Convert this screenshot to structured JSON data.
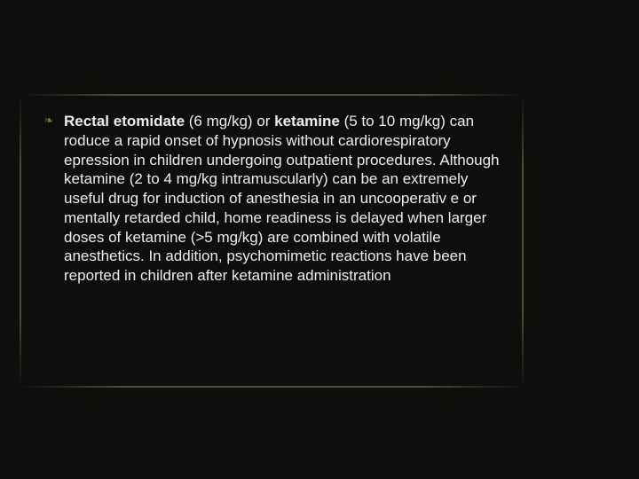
{
  "slide": {
    "background_color": "#0e0e0c",
    "text_color": "#ececec",
    "accent_color": "#7f773e",
    "bullet_glyph": "❧",
    "body_fontsize": 17,
    "body_html": "<b>Rectal etomidate</b> (6 mg/kg) or <b>ketamine</b> (5 to 10 mg/kg) can roduce a rapid onset of hypnosis without cardiorespiratory epression in children undergoing outpatient procedures. Although ketamine (2 to 4 mg/kg intramuscularly) can be an extremely useful drug for induction of anesthesia in an uncooperativ e or mentally retarded child, home readiness is delayed when larger doses of ketamine (>5 mg/kg) are combined with volatile anesthetics. In addition, psychomimetic reactions have been reported in children after ketamine administration"
  }
}
